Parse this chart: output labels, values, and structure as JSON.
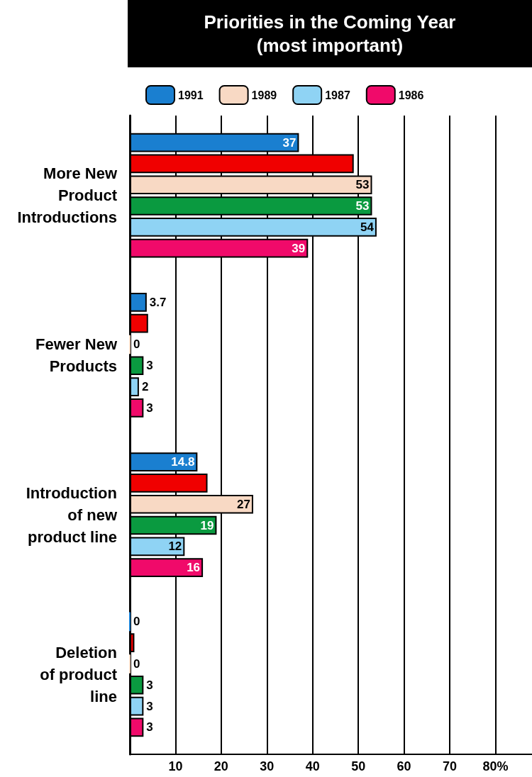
{
  "chart_data": {
    "type": "bar",
    "orientation": "horizontal",
    "title": "Priorities in the Coming Year\n(most important)",
    "categories": [
      "More New\nProduct\nIntroductions",
      "Fewer New\nProducts",
      "Introduction\nof new\nproduct line",
      "Deletion\nof product\nline"
    ],
    "series": [
      {
        "name": "1991",
        "color": "#1a7fd0",
        "values": [
          37,
          3.7,
          14.8,
          0
        ],
        "value_labels": [
          "37",
          "3.7",
          "14.8",
          "0"
        ]
      },
      {
        "color": "#f00000",
        "values": [
          49,
          4,
          17,
          1
        ],
        "value_labels": [
          null,
          null,
          null,
          null
        ]
      },
      {
        "name": "1989",
        "color": "#f8d9c4",
        "values": [
          53,
          0,
          27,
          0
        ],
        "value_labels": [
          "53",
          "0",
          "27",
          "0"
        ]
      },
      {
        "color": "#0a9a40",
        "values": [
          53,
          3,
          19,
          3
        ],
        "value_labels": [
          "53",
          "3",
          "19",
          "3"
        ]
      },
      {
        "name": "1987",
        "color": "#8fd3f4",
        "values": [
          54,
          2,
          12,
          3
        ],
        "value_labels": [
          "54",
          "2",
          "12",
          "3"
        ]
      },
      {
        "name": "1986",
        "color": "#f00a6a",
        "values": [
          39,
          3,
          16,
          3
        ],
        "value_labels": [
          "39",
          "3",
          "16",
          "3"
        ]
      }
    ],
    "xlim": [
      0,
      88
    ],
    "xticks": [
      {
        "value": 0,
        "label": null
      },
      10,
      20,
      30,
      40,
      50,
      60,
      70,
      {
        "value": 80,
        "label": "80%"
      }
    ],
    "grid": "x",
    "legend": "top"
  }
}
